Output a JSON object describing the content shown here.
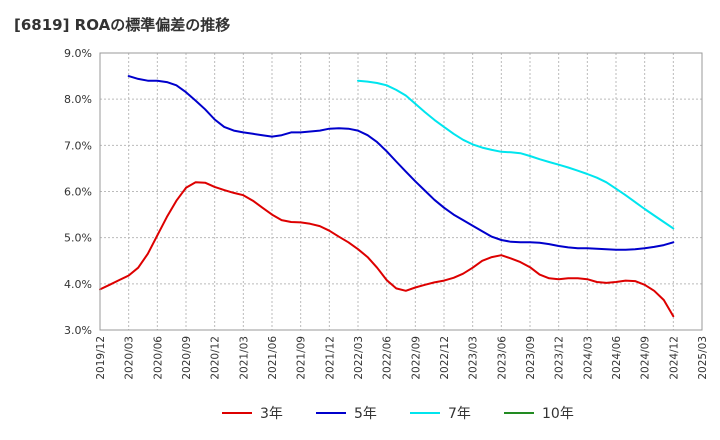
{
  "chart_data": {
    "type": "line",
    "title": "[6819]  ROAの標準偏差の推移",
    "xlabel": "",
    "ylabel": "",
    "ylim": [
      3.0,
      9.0
    ],
    "y_ticks": [
      "3.0%",
      "4.0%",
      "5.0%",
      "6.0%",
      "7.0%",
      "8.0%",
      "9.0%"
    ],
    "x_ticks": [
      "2019/12",
      "2020/03",
      "2020/06",
      "2020/09",
      "2020/12",
      "2021/03",
      "2021/06",
      "2021/09",
      "2021/12",
      "2022/03",
      "2022/06",
      "2022/09",
      "2022/12",
      "2023/03",
      "2023/06",
      "2023/09",
      "2023/12",
      "2024/03",
      "2024/06",
      "2024/09",
      "2024/12",
      "2025/03"
    ],
    "grid": true,
    "legend_position": "bottom",
    "series": [
      {
        "name": "3年",
        "color": "#dd0000",
        "points": [
          [
            "2019/12",
            3.88
          ],
          [
            "2020/01",
            3.98
          ],
          [
            "2020/02",
            4.08
          ],
          [
            "2020/03",
            4.18
          ],
          [
            "2020/04",
            4.35
          ],
          [
            "2020/05",
            4.65
          ],
          [
            "2020/06",
            5.05
          ],
          [
            "2020/07",
            5.45
          ],
          [
            "2020/08",
            5.8
          ],
          [
            "2020/09",
            6.08
          ],
          [
            "2020/10",
            6.2
          ],
          [
            "2020/11",
            6.19
          ],
          [
            "2020/12",
            6.1
          ],
          [
            "2021/01",
            6.03
          ],
          [
            "2021/02",
            5.97
          ],
          [
            "2021/03",
            5.92
          ],
          [
            "2021/04",
            5.8
          ],
          [
            "2021/05",
            5.65
          ],
          [
            "2021/06",
            5.5
          ],
          [
            "2021/07",
            5.38
          ],
          [
            "2021/08",
            5.34
          ],
          [
            "2021/09",
            5.33
          ],
          [
            "2021/10",
            5.3
          ],
          [
            "2021/11",
            5.25
          ],
          [
            "2021/12",
            5.15
          ],
          [
            "2022/01",
            5.02
          ],
          [
            "2022/02",
            4.9
          ],
          [
            "2022/03",
            4.75
          ],
          [
            "2022/04",
            4.58
          ],
          [
            "2022/05",
            4.35
          ],
          [
            "2022/06",
            4.08
          ],
          [
            "2022/07",
            3.9
          ],
          [
            "2022/08",
            3.85
          ],
          [
            "2022/09",
            3.92
          ],
          [
            "2022/10",
            3.98
          ],
          [
            "2022/11",
            4.03
          ],
          [
            "2022/12",
            4.07
          ],
          [
            "2023/01",
            4.13
          ],
          [
            "2023/02",
            4.22
          ],
          [
            "2023/03",
            4.35
          ],
          [
            "2023/04",
            4.5
          ],
          [
            "2023/05",
            4.58
          ],
          [
            "2023/06",
            4.62
          ],
          [
            "2023/07",
            4.55
          ],
          [
            "2023/08",
            4.47
          ],
          [
            "2023/09",
            4.36
          ],
          [
            "2023/10",
            4.2
          ],
          [
            "2023/11",
            4.12
          ],
          [
            "2023/12",
            4.1
          ],
          [
            "2024/01",
            4.12
          ],
          [
            "2024/02",
            4.12
          ],
          [
            "2024/03",
            4.1
          ],
          [
            "2024/04",
            4.04
          ],
          [
            "2024/05",
            4.02
          ],
          [
            "2024/06",
            4.04
          ],
          [
            "2024/07",
            4.07
          ],
          [
            "2024/08",
            4.06
          ],
          [
            "2024/09",
            3.98
          ],
          [
            "2024/10",
            3.85
          ],
          [
            "2024/11",
            3.65
          ],
          [
            "2024/12",
            3.3
          ]
        ]
      },
      {
        "name": "5年",
        "color": "#0000cc",
        "points": [
          [
            "2020/03",
            8.5
          ],
          [
            "2020/04",
            8.44
          ],
          [
            "2020/05",
            8.4
          ],
          [
            "2020/06",
            8.4
          ],
          [
            "2020/07",
            8.37
          ],
          [
            "2020/08",
            8.3
          ],
          [
            "2020/09",
            8.15
          ],
          [
            "2020/10",
            7.97
          ],
          [
            "2020/11",
            7.78
          ],
          [
            "2020/12",
            7.56
          ],
          [
            "2021/01",
            7.4
          ],
          [
            "2021/02",
            7.32
          ],
          [
            "2021/03",
            7.28
          ],
          [
            "2021/04",
            7.25
          ],
          [
            "2021/05",
            7.22
          ],
          [
            "2021/06",
            7.19
          ],
          [
            "2021/07",
            7.22
          ],
          [
            "2021/08",
            7.28
          ],
          [
            "2021/09",
            7.28
          ],
          [
            "2021/10",
            7.3
          ],
          [
            "2021/11",
            7.32
          ],
          [
            "2021/12",
            7.36
          ],
          [
            "2022/01",
            7.37
          ],
          [
            "2022/02",
            7.36
          ],
          [
            "2022/03",
            7.32
          ],
          [
            "2022/04",
            7.22
          ],
          [
            "2022/05",
            7.07
          ],
          [
            "2022/06",
            6.87
          ],
          [
            "2022/07",
            6.65
          ],
          [
            "2022/08",
            6.43
          ],
          [
            "2022/09",
            6.22
          ],
          [
            "2022/10",
            6.02
          ],
          [
            "2022/11",
            5.82
          ],
          [
            "2022/12",
            5.65
          ],
          [
            "2023/01",
            5.5
          ],
          [
            "2023/02",
            5.38
          ],
          [
            "2023/03",
            5.26
          ],
          [
            "2023/04",
            5.14
          ],
          [
            "2023/05",
            5.02
          ],
          [
            "2023/06",
            4.95
          ],
          [
            "2023/07",
            4.91
          ],
          [
            "2023/08",
            4.9
          ],
          [
            "2023/09",
            4.9
          ],
          [
            "2023/10",
            4.89
          ],
          [
            "2023/11",
            4.86
          ],
          [
            "2023/12",
            4.82
          ],
          [
            "2024/01",
            4.79
          ],
          [
            "2024/02",
            4.77
          ],
          [
            "2024/03",
            4.77
          ],
          [
            "2024/04",
            4.76
          ],
          [
            "2024/05",
            4.75
          ],
          [
            "2024/06",
            4.74
          ],
          [
            "2024/07",
            4.74
          ],
          [
            "2024/08",
            4.75
          ],
          [
            "2024/09",
            4.77
          ],
          [
            "2024/10",
            4.8
          ],
          [
            "2024/11",
            4.84
          ],
          [
            "2024/12",
            4.9
          ]
        ]
      },
      {
        "name": "7年",
        "color": "#00e5ee",
        "points": [
          [
            "2022/03",
            8.4
          ],
          [
            "2022/04",
            8.38
          ],
          [
            "2022/05",
            8.35
          ],
          [
            "2022/06",
            8.3
          ],
          [
            "2022/07",
            8.2
          ],
          [
            "2022/08",
            8.08
          ],
          [
            "2022/09",
            7.9
          ],
          [
            "2022/10",
            7.72
          ],
          [
            "2022/11",
            7.55
          ],
          [
            "2022/12",
            7.4
          ],
          [
            "2023/01",
            7.25
          ],
          [
            "2023/02",
            7.12
          ],
          [
            "2023/03",
            7.02
          ],
          [
            "2023/04",
            6.95
          ],
          [
            "2023/05",
            6.9
          ],
          [
            "2023/06",
            6.86
          ],
          [
            "2023/07",
            6.85
          ],
          [
            "2023/08",
            6.83
          ],
          [
            "2023/09",
            6.77
          ],
          [
            "2023/10",
            6.7
          ],
          [
            "2023/11",
            6.64
          ],
          [
            "2023/12",
            6.58
          ],
          [
            "2024/01",
            6.52
          ],
          [
            "2024/02",
            6.45
          ],
          [
            "2024/03",
            6.38
          ],
          [
            "2024/04",
            6.3
          ],
          [
            "2024/05",
            6.2
          ],
          [
            "2024/06",
            6.06
          ],
          [
            "2024/07",
            5.92
          ],
          [
            "2024/08",
            5.77
          ],
          [
            "2024/09",
            5.62
          ],
          [
            "2024/10",
            5.48
          ],
          [
            "2024/11",
            5.34
          ],
          [
            "2024/12",
            5.2
          ]
        ]
      },
      {
        "name": "10年",
        "color": "#228b22",
        "points": []
      }
    ]
  }
}
